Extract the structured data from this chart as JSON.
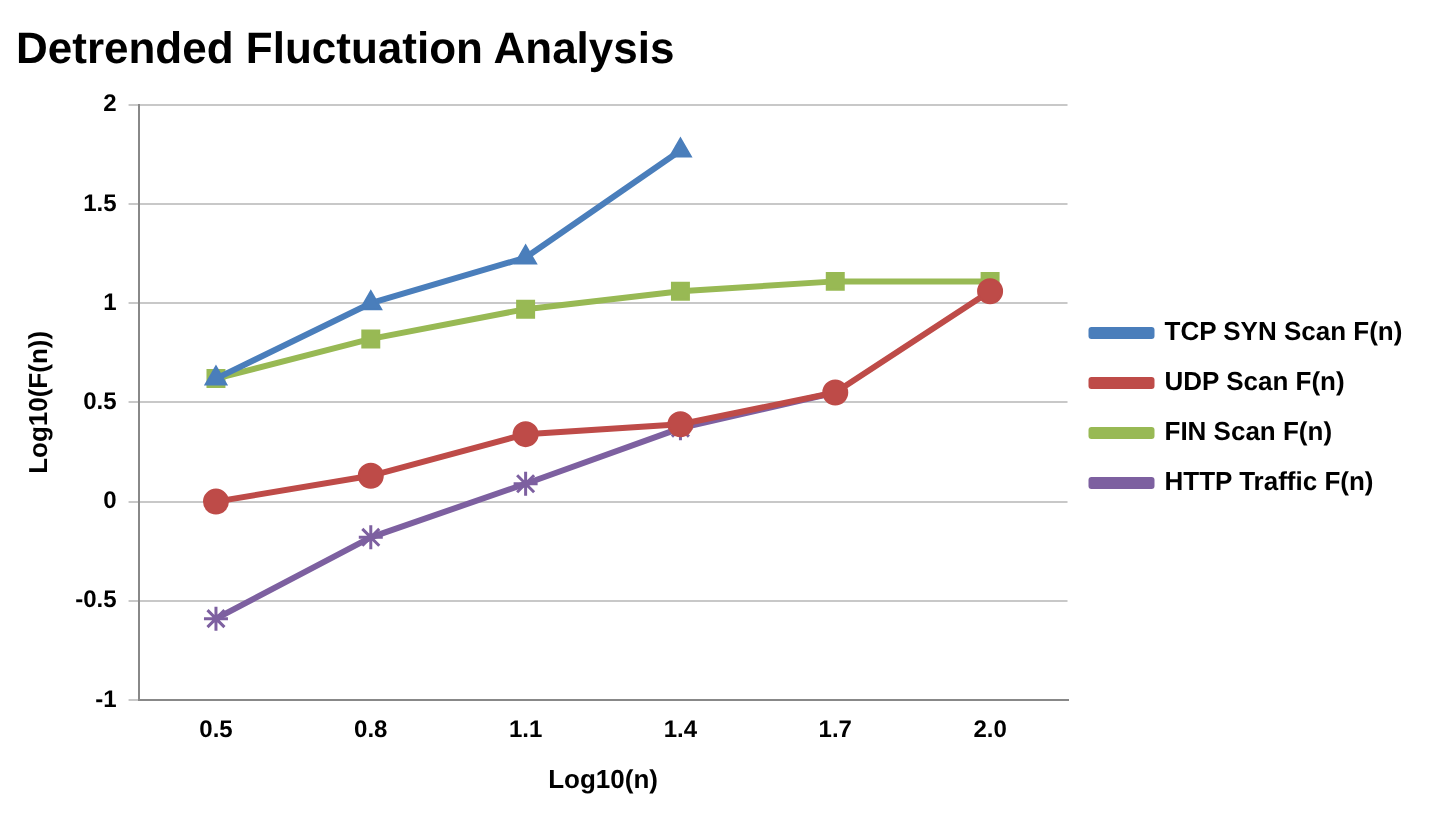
{
  "chart_data": {
    "type": "line",
    "title": "Detrended Fluctuation Analysis",
    "xlabel": "Log10(n)",
    "ylabel": "Log10(F(n))",
    "categories": [
      "0.5",
      "0.8",
      "1.1",
      "1.4",
      "1.7",
      "2.0"
    ],
    "series": [
      {
        "name": "TCP SYN Scan F(n)",
        "color": "#4a7ebb",
        "marker": "triangle",
        "values": [
          0.62,
          1.0,
          1.23,
          1.77,
          null,
          null
        ]
      },
      {
        "name": "UDP Scan F(n)",
        "color": "#be4b48",
        "marker": "circle",
        "values": [
          0,
          0.13,
          0.34,
          0.39,
          0.55,
          1.06
        ]
      },
      {
        "name": "FIN Scan F(n)",
        "color": "#98b954",
        "marker": "square",
        "values": [
          0.62,
          0.82,
          0.97,
          1.06,
          1.11,
          1.11
        ]
      },
      {
        "name": "HTTP Traffic F(n)",
        "color": "#7d60a0",
        "marker": "cross",
        "values": [
          -0.59,
          -0.18,
          0.09,
          0.37,
          0.55,
          null
        ]
      }
    ],
    "ylim": [
      -1,
      2
    ],
    "yticks": [
      -1,
      -0.5,
      0,
      0.5,
      1,
      1.5,
      2
    ],
    "grid": "y",
    "legend": "right",
    "line_style": "solid"
  }
}
